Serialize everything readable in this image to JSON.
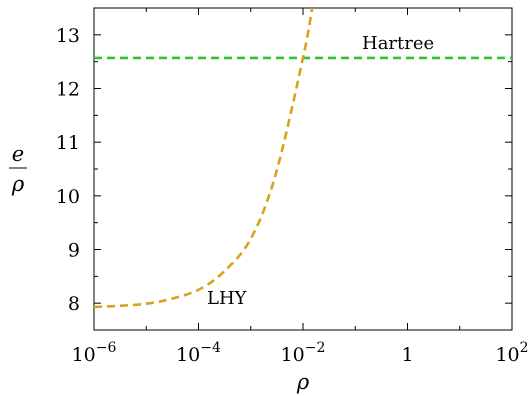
{
  "chart_data": {
    "type": "line",
    "xlabel": "ρ",
    "ylabel_num": "e",
    "ylabel_den": "ρ",
    "xscale": "log",
    "xlim": [
      1e-06,
      100
    ],
    "ylim": [
      7.5,
      13.5
    ],
    "x_ticks": [
      {
        "value": 1e-06,
        "base": "10",
        "exp": "−6"
      },
      {
        "value": 0.0001,
        "base": "10",
        "exp": "−4"
      },
      {
        "value": 0.01,
        "base": "10",
        "exp": "−2"
      },
      {
        "value": 1,
        "base": "1",
        "exp": ""
      },
      {
        "value": 100,
        "base": "10",
        "exp": "2"
      }
    ],
    "y_ticks": [
      "8",
      "9",
      "10",
      "11",
      "12",
      "13"
    ],
    "grid": false,
    "series": [
      {
        "name": "Hartree",
        "color": "#2ec52e",
        "style": "dashed",
        "x": [
          1e-06,
          100
        ],
        "y": [
          12.57,
          12.57
        ]
      },
      {
        "name": "LHY",
        "color": "#d9a21b",
        "style": "dashed",
        "x": [
          1e-06,
          3e-06,
          1e-05,
          3e-05,
          0.0001,
          0.0003,
          0.001,
          0.003,
          0.01,
          0.015
        ],
        "y": [
          7.93,
          7.95,
          7.99,
          8.08,
          8.25,
          8.58,
          9.2,
          10.4,
          12.57,
          13.5
        ]
      }
    ]
  }
}
